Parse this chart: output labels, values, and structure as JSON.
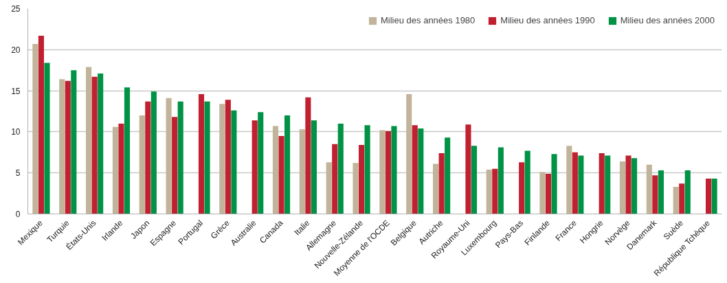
{
  "chart_data": {
    "type": "bar",
    "categories": [
      "Mexique",
      "Turquie",
      "États-Unis",
      "Irlande",
      "Japon",
      "Espagne",
      "Portugal",
      "Grèce",
      "Australie",
      "Canada",
      "Italie",
      "Allemagne",
      "Nouvelle-Zélande",
      "Moyenne de l'OCDE",
      "Belgique",
      "Autriche",
      "Royaume-Uni",
      "Luxembourg",
      "Pays-Bas",
      "Finlande",
      "France",
      "Hongrie",
      "Norvège",
      "Danemark",
      "Suède",
      "République Tchèque"
    ],
    "series": [
      {
        "name": "Milieu des années 1980",
        "color": "#c2b49a",
        "values": [
          20.7,
          16.4,
          17.9,
          10.6,
          12.0,
          14.1,
          null,
          13.4,
          null,
          10.7,
          10.3,
          6.3,
          6.2,
          10.2,
          14.6,
          6.1,
          null,
          5.4,
          null,
          5.1,
          8.3,
          null,
          6.4,
          6.0,
          3.3,
          null
        ]
      },
      {
        "name": "Milieu des années 1990",
        "color": "#c0202f",
        "values": [
          21.7,
          16.2,
          16.7,
          11.0,
          13.7,
          11.8,
          14.6,
          13.9,
          11.4,
          9.5,
          14.2,
          8.5,
          8.4,
          10.1,
          10.8,
          7.4,
          10.9,
          5.5,
          6.3,
          4.9,
          7.5,
          7.4,
          7.1,
          4.7,
          3.7,
          4.3
        ]
      },
      {
        "name": "Milieu des années 2000",
        "color": "#009245",
        "values": [
          18.4,
          17.5,
          17.1,
          15.4,
          14.9,
          13.7,
          13.7,
          12.6,
          12.4,
          12.0,
          11.4,
          11.0,
          10.8,
          10.7,
          10.4,
          9.3,
          8.3,
          8.1,
          7.7,
          7.3,
          7.1,
          7.1,
          6.8,
          5.3,
          5.3,
          4.3
        ]
      }
    ],
    "ylim": [
      0,
      25
    ],
    "yticks": [
      0,
      5,
      10,
      15,
      20,
      25
    ],
    "grid": "y",
    "legend": "top right"
  }
}
